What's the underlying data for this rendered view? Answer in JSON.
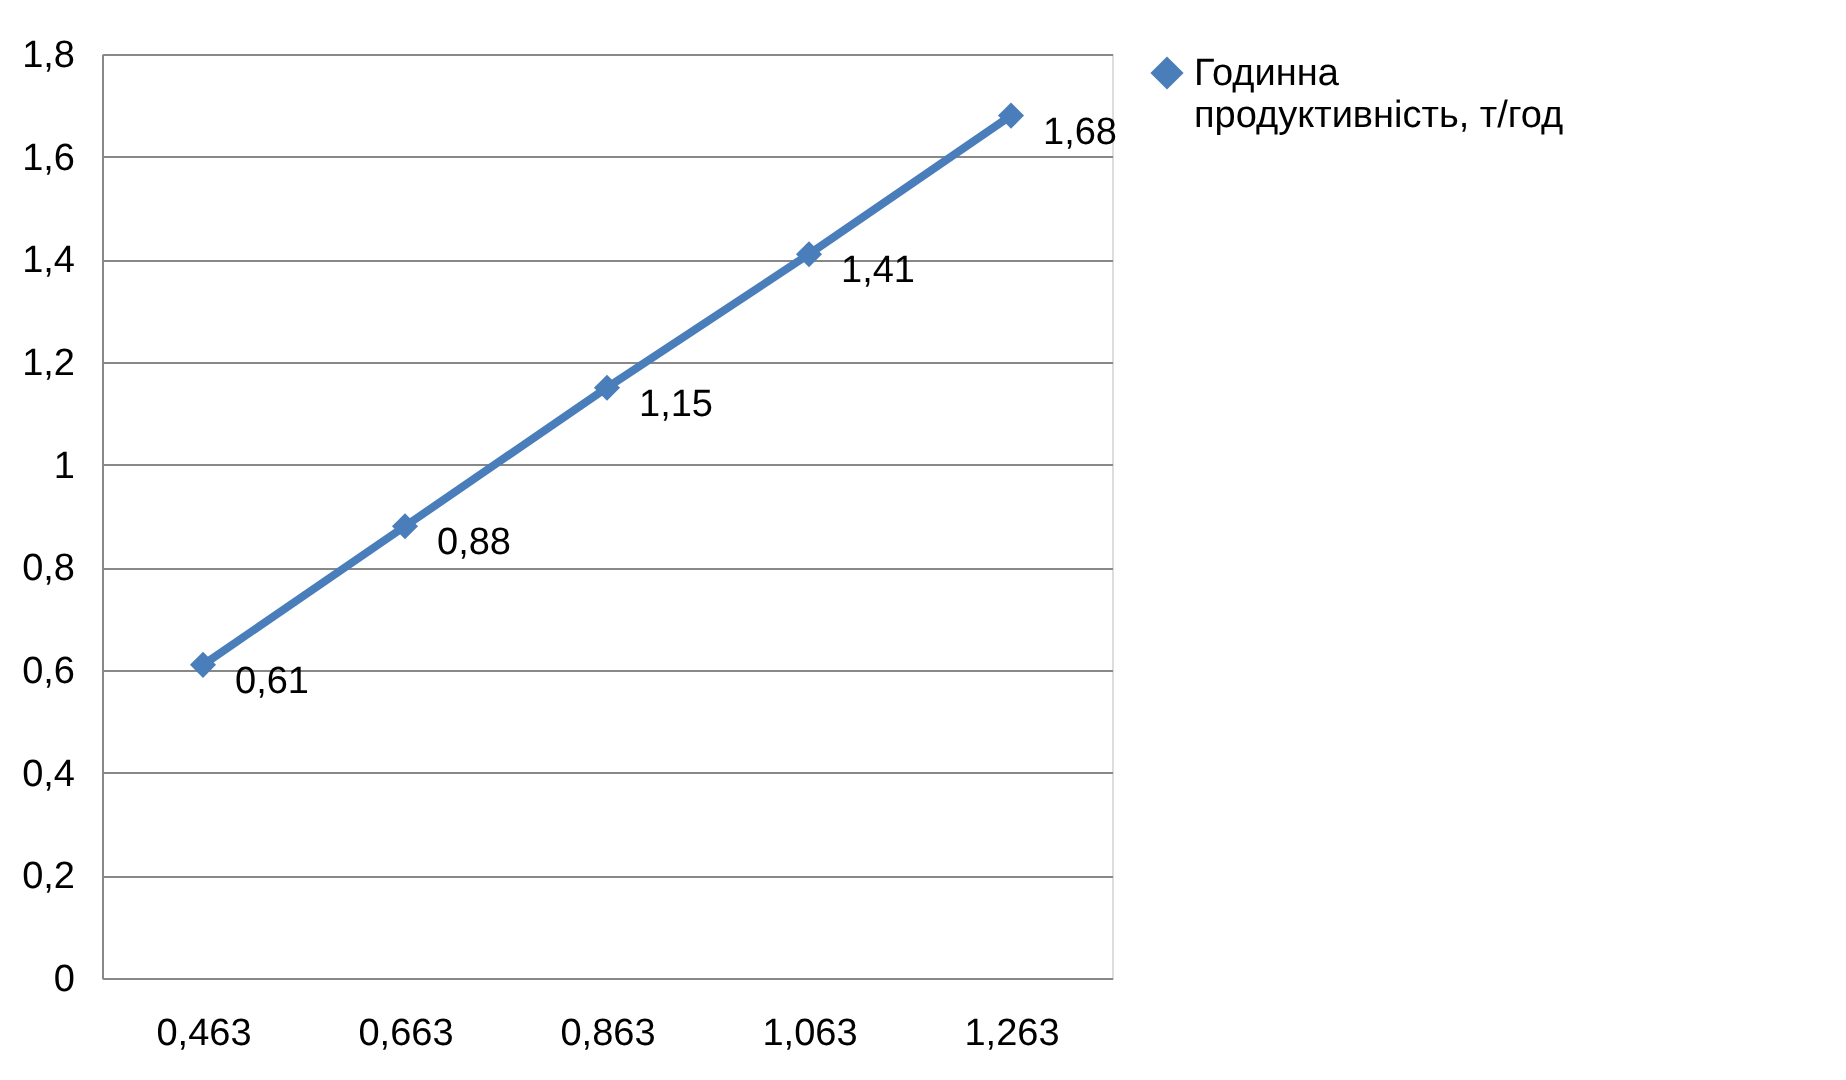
{
  "chart_data": {
    "type": "line",
    "categories": [
      "0,463",
      "0,663",
      "0,863",
      "1,063",
      "1,263"
    ],
    "series": [
      {
        "name": "Годинна продуктивність, т/год",
        "color": "#4a7ebb",
        "values": [
          0.61,
          0.88,
          1.15,
          1.41,
          1.68
        ],
        "value_labels": [
          "0,61",
          "0,88",
          "1,15",
          "1,41",
          "1,68"
        ]
      }
    ],
    "ylim": [
      0,
      1.8
    ],
    "yticks": [
      0,
      {
        "value": 0.2,
        "label": "0,2"
      },
      {
        "value": 0.4,
        "label": "0,4"
      },
      {
        "value": 0.6,
        "label": "0,6"
      },
      {
        "value": 0.8,
        "label": "0,8"
      },
      1,
      {
        "value": 1.2,
        "label": "1,2"
      },
      {
        "value": 1.4,
        "label": "1,4"
      },
      {
        "value": 1.6,
        "label": "1,6"
      },
      {
        "value": 1.8,
        "label": "1,8"
      }
    ],
    "grid": "y",
    "legend": "right",
    "marker": "diamond",
    "line_style": "solid"
  }
}
